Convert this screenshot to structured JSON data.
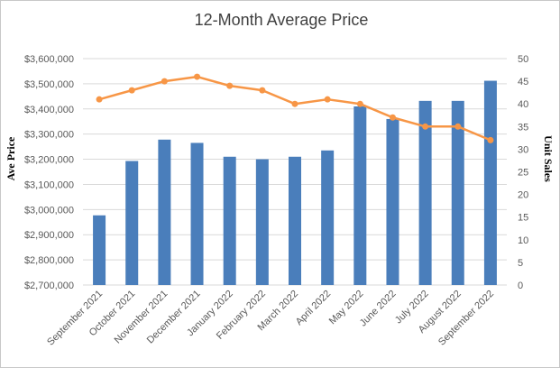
{
  "chart_data": {
    "type": "bar",
    "title": "12-Month Average Price",
    "ylabel": "Ave Price",
    "y2label": "Unit Sales",
    "categories": [
      "September 2021",
      "October 2021",
      "November 2021",
      "December 2021",
      "January 2022",
      "February 2022",
      "March 2022",
      "April 2022",
      "May 2022",
      "June 2022",
      "July 2022",
      "August 2022",
      "September 2022"
    ],
    "ylim": [
      2700000,
      3600000
    ],
    "y2lim": [
      0,
      50
    ],
    "yticks": [
      "$2,700,000",
      "$2,800,000",
      "$2,900,000",
      "$3,000,000",
      "$3,100,000",
      "$3,200,000",
      "$3,300,000",
      "$3,400,000",
      "$3,500,000",
      "$3,600,000"
    ],
    "y2ticks": [
      "0",
      "5",
      "10",
      "15",
      "20",
      "25",
      "30",
      "35",
      "40",
      "45",
      "50"
    ],
    "grid": true,
    "series": [
      {
        "type": "bar",
        "axis": "left",
        "color": "#4a7ebb",
        "values": [
          2977000,
          3193000,
          3278000,
          3265000,
          3210000,
          3200000,
          3210000,
          3235000,
          3410000,
          3360000,
          3432000,
          3432000,
          3512000
        ]
      },
      {
        "type": "line",
        "axis": "right",
        "color": "#f79646",
        "values": [
          41,
          43,
          45,
          46,
          44,
          43,
          40,
          41,
          40,
          37,
          35,
          35,
          32
        ]
      }
    ]
  }
}
